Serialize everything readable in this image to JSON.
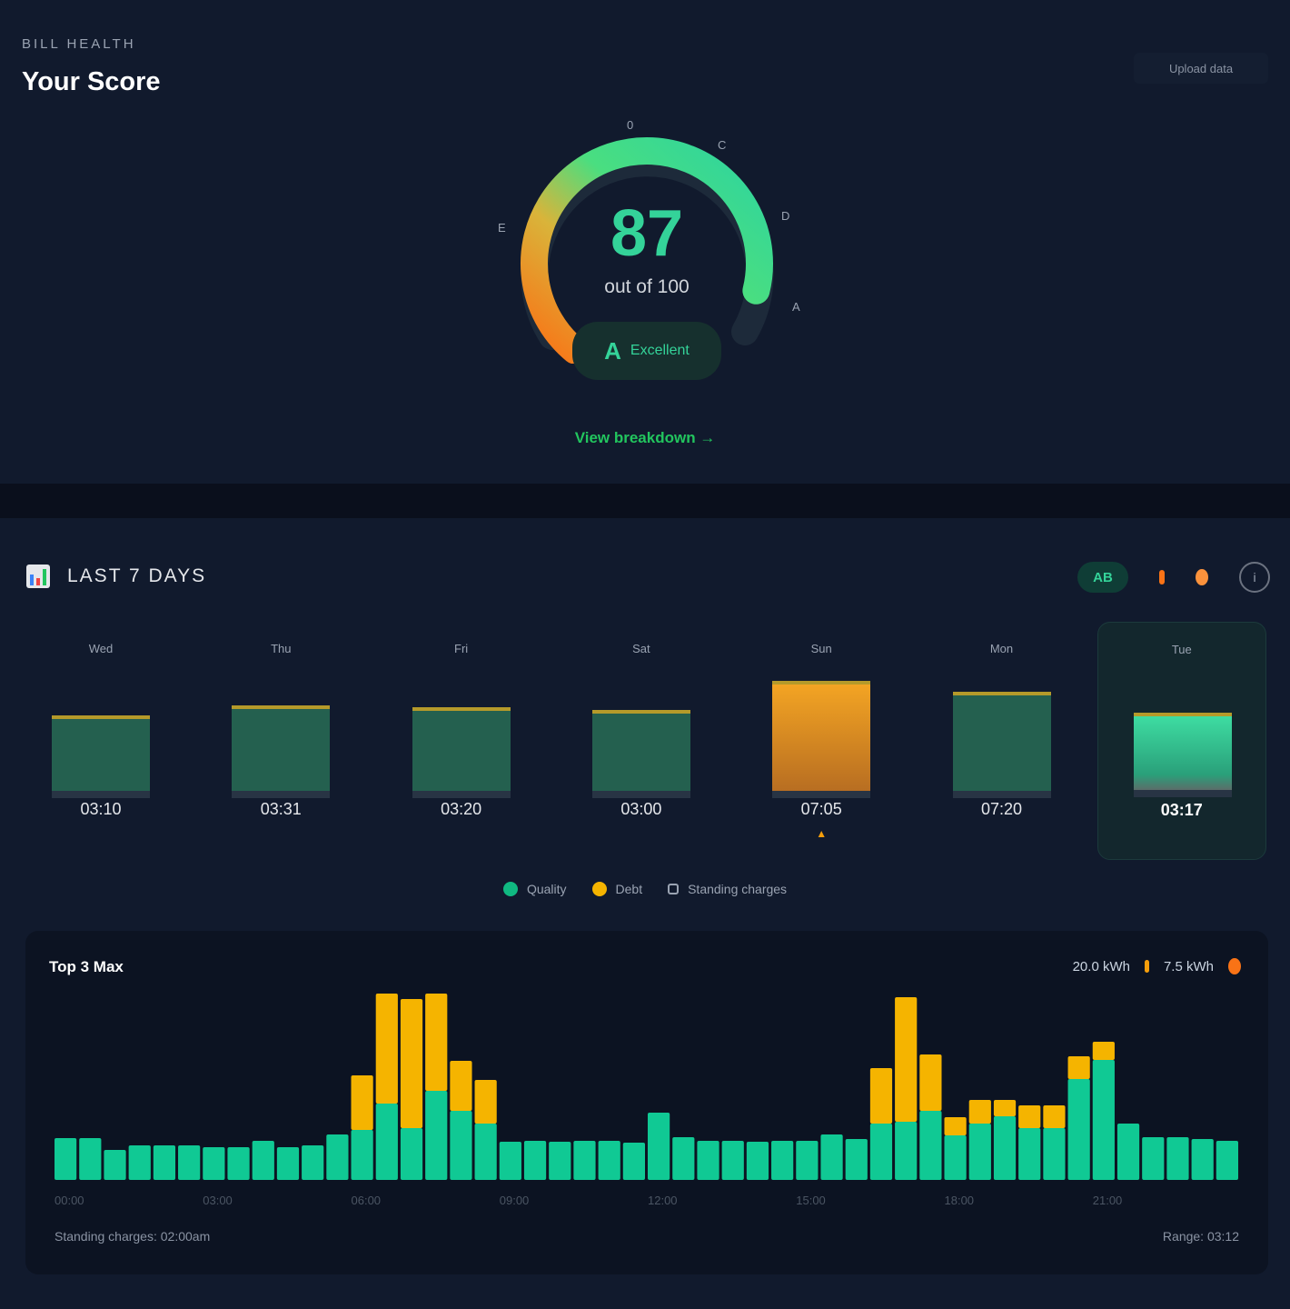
{
  "header": {
    "kicker": "BILL HEALTH",
    "title": "Your Score",
    "action_button": "Upload data"
  },
  "gauge": {
    "score": 87,
    "score_text": "87",
    "out_of": "out of 100",
    "max": 100,
    "labels": [
      "E",
      "0",
      "C",
      "D",
      "A"
    ],
    "grade": "A",
    "grade_text": "Excellent",
    "link": "View breakdown →",
    "colors": {
      "low": "#f97316",
      "mid": "#eab308",
      "high": "#34d399"
    }
  },
  "week": {
    "title": "LAST 7 DAYS",
    "icon": "bar-chart-icon",
    "pill": "AB",
    "days": [
      {
        "name": "Wed",
        "value_label": "03:10",
        "value": 87,
        "color": "#24604f"
      },
      {
        "name": "Thu",
        "value_label": "03:31",
        "value": 99,
        "color": "#24604f"
      },
      {
        "name": "Fri",
        "value_label": "03:20",
        "value": 97,
        "color": "#24604f"
      },
      {
        "name": "Sat",
        "value_label": "03:00",
        "value": 94,
        "color": "#24604f"
      },
      {
        "name": "Sun",
        "value_label": "07:05",
        "value": 127,
        "color": "#f0a020",
        "alert": "▲"
      },
      {
        "name": "Mon",
        "value_label": "07:20",
        "value": 115,
        "color": "#24604f"
      },
      {
        "name": "Tue",
        "value_label": "03:17",
        "value": 90,
        "color": "#34d399",
        "selected": true
      }
    ]
  },
  "legend": [
    {
      "label": "Quality",
      "color": "#10b981",
      "shape": "dot"
    },
    {
      "label": "Debt",
      "color": "#f5b400",
      "shape": "dot"
    },
    {
      "label": "Standing charges",
      "color": "#9aa3b2",
      "shape": "square"
    }
  ],
  "chart_data": {
    "type": "bar",
    "stacked": true,
    "title": "Top 3 Max",
    "legend_items": [
      "20.0 kWh",
      "7.5 kWh"
    ],
    "x_ticks": [
      "00:00",
      "03:00",
      "06:00",
      "09:00",
      "12:00",
      "15:00",
      "18:00",
      "21:00"
    ],
    "series": [
      {
        "color": "#10c994",
        "values": [
          46,
          46,
          33,
          38,
          38,
          38,
          36,
          36,
          43,
          36,
          38,
          50,
          55,
          84,
          57,
          98,
          76,
          62,
          42,
          43,
          42,
          43,
          43,
          41,
          74,
          47,
          43,
          43,
          42,
          43,
          43,
          50,
          45,
          62,
          64,
          76,
          49,
          62,
          70,
          57,
          57,
          111,
          132,
          62,
          47,
          47,
          45,
          43
        ]
      },
      {
        "color": "#f5b400",
        "values": [
          0,
          0,
          0,
          0,
          0,
          0,
          0,
          0,
          0,
          0,
          0,
          0,
          60,
          121,
          142,
          107,
          55,
          48,
          0,
          0,
          0,
          0,
          0,
          0,
          0,
          0,
          0,
          0,
          0,
          0,
          0,
          0,
          0,
          61,
          137,
          62,
          20,
          26,
          18,
          25,
          25,
          25,
          20,
          0,
          0,
          0,
          0,
          0
        ]
      }
    ],
    "ylim": [
      0,
      210
    ]
  },
  "footer": {
    "left": "Standing charges: 02:00am",
    "right": "Range: 03:12"
  }
}
